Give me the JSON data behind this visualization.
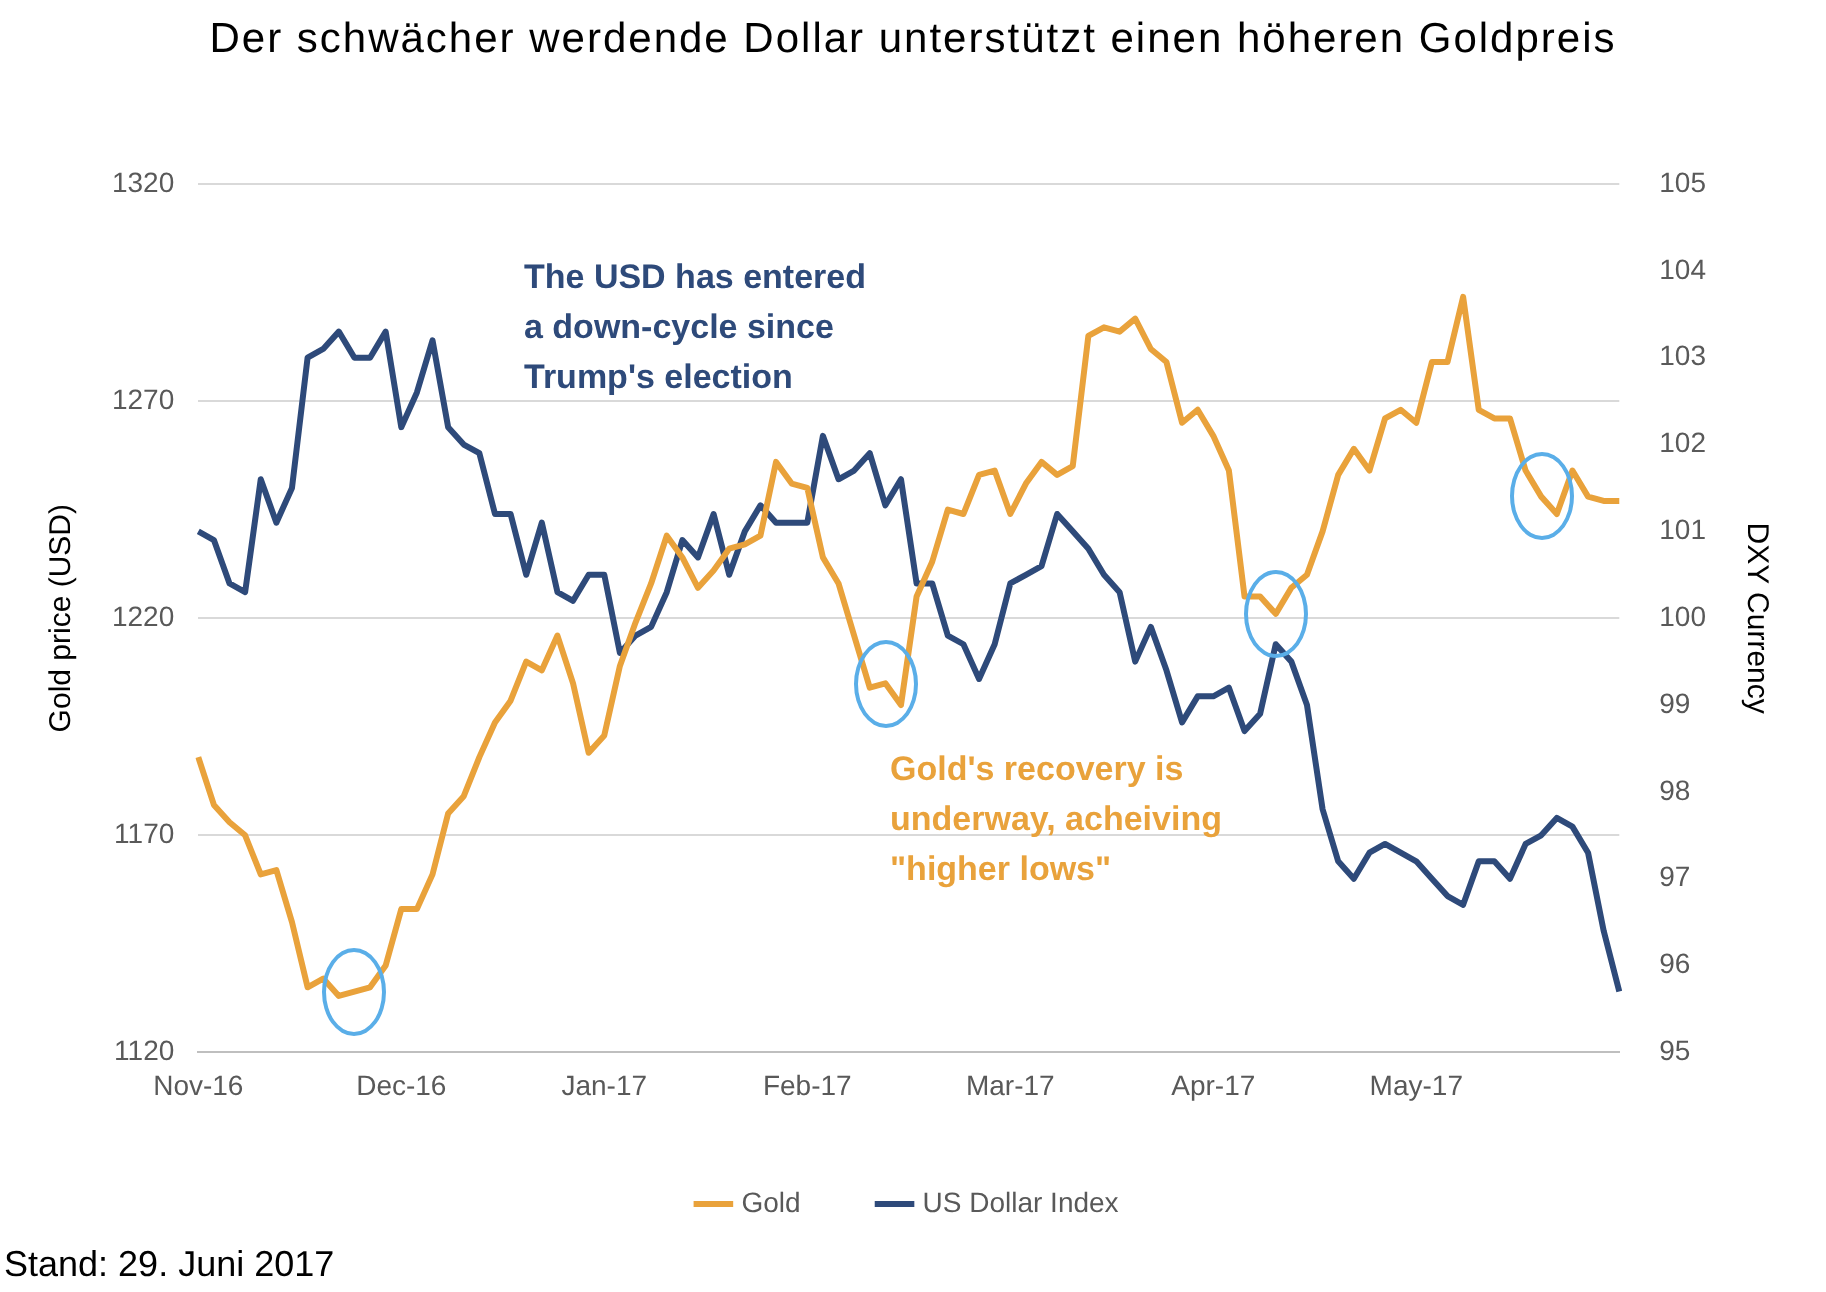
{
  "chart_data": {
    "type": "line",
    "title": "Der schwächer werdende Dollar unterstützt einen höheren Goldpreis",
    "ylabel": "Gold price (USD)",
    "y2label": "DXY Currency",
    "categories": [
      "Nov-16",
      null,
      null,
      null,
      null,
      null,
      null,
      null,
      null,
      null,
      null,
      null,
      null,
      "Dec-16",
      null,
      null,
      null,
      null,
      null,
      null,
      null,
      null,
      null,
      null,
      null,
      null,
      "Jan-17",
      null,
      null,
      null,
      null,
      null,
      null,
      null,
      null,
      null,
      null,
      null,
      null,
      "Feb-17",
      null,
      null,
      null,
      null,
      null,
      null,
      null,
      null,
      null,
      null,
      null,
      null,
      "Mar-17",
      null,
      null,
      null,
      null,
      null,
      null,
      null,
      null,
      null,
      null,
      null,
      null,
      "Apr-17",
      null,
      null,
      null,
      null,
      null,
      null,
      null,
      null,
      null,
      null,
      null,
      null,
      "May-17",
      null,
      null,
      null,
      null,
      null,
      null,
      null,
      null,
      null,
      null,
      null,
      null,
      null
    ],
    "series": [
      {
        "name": "Gold",
        "color": "#e9a23b",
        "values": [
          1188,
          1177,
          1173,
          1170,
          1161,
          1162,
          1150,
          1135,
          1137,
          1133,
          1134,
          1135,
          1140,
          1153,
          1153,
          1161,
          1175,
          1179,
          1188,
          1196,
          1201,
          1210,
          1208,
          1216,
          1205,
          1189,
          1193,
          1209,
          1219,
          1228,
          1239,
          1234,
          1227,
          1231,
          1236,
          1237,
          1239,
          1256,
          1251,
          1250,
          1234,
          1228,
          1216,
          1204,
          1205,
          1200,
          1225,
          1233,
          1245,
          1244,
          1253,
          1254,
          1244,
          1251,
          1256,
          1253,
          1255,
          1285,
          1287,
          1286,
          1289,
          1282,
          1279,
          1265,
          1268,
          1262,
          1254,
          1225,
          1225,
          1221,
          1227,
          1230,
          1240,
          1253,
          1259,
          1254,
          1266,
          1268,
          1265,
          1279,
          1279,
          1294,
          1268,
          1266,
          1266,
          1254,
          1248,
          1244,
          1254,
          1248,
          1247,
          1247
        ]
      },
      {
        "name": "US Dollar Index",
        "color": "#2e4a7a",
        "axis": "y2",
        "values": [
          101.0,
          100.9,
          100.4,
          100.3,
          101.6,
          101.1,
          101.5,
          103.0,
          103.1,
          103.3,
          103.0,
          103.0,
          103.3,
          102.2,
          102.6,
          103.2,
          102.2,
          102.0,
          101.9,
          101.2,
          101.2,
          100.5,
          101.1,
          100.3,
          100.2,
          100.5,
          100.5,
          99.6,
          99.8,
          99.9,
          100.3,
          100.9,
          100.7,
          101.2,
          100.5,
          101.0,
          101.3,
          101.1,
          101.1,
          101.1,
          102.1,
          101.6,
          101.7,
          101.9,
          101.3,
          101.6,
          100.4,
          100.4,
          99.8,
          99.7,
          99.3,
          99.7,
          100.4,
          100.5,
          100.6,
          101.2,
          101.0,
          100.8,
          100.5,
          100.3,
          99.5,
          99.9,
          99.4,
          98.8,
          99.1,
          99.1,
          99.2,
          98.7,
          98.9,
          99.7,
          99.5,
          99.0,
          97.8,
          97.2,
          97.0,
          97.3,
          97.4,
          97.3,
          97.2,
          97.0,
          96.8,
          96.7,
          97.2,
          97.2,
          97.0,
          97.4,
          97.5,
          97.7,
          97.6,
          97.3,
          96.4,
          95.7
        ]
      }
    ],
    "ylim": [
      1120,
      1320
    ],
    "yticks": [
      1120,
      1170,
      1220,
      1270,
      1320
    ],
    "y2lim": [
      95,
      105
    ],
    "y2ticks": [
      95,
      96,
      97,
      98,
      99,
      100,
      101,
      102,
      103,
      104,
      105
    ],
    "grid": "y",
    "legend": "bottom",
    "marker": "none",
    "line_style": "solid",
    "annotations": [
      "The USD has entered a down-cycle since Trump's election",
      "Gold's recovery is underway, acheiving \"higher lows\"",
      "Stand: 29. Juni 2017"
    ]
  }
}
